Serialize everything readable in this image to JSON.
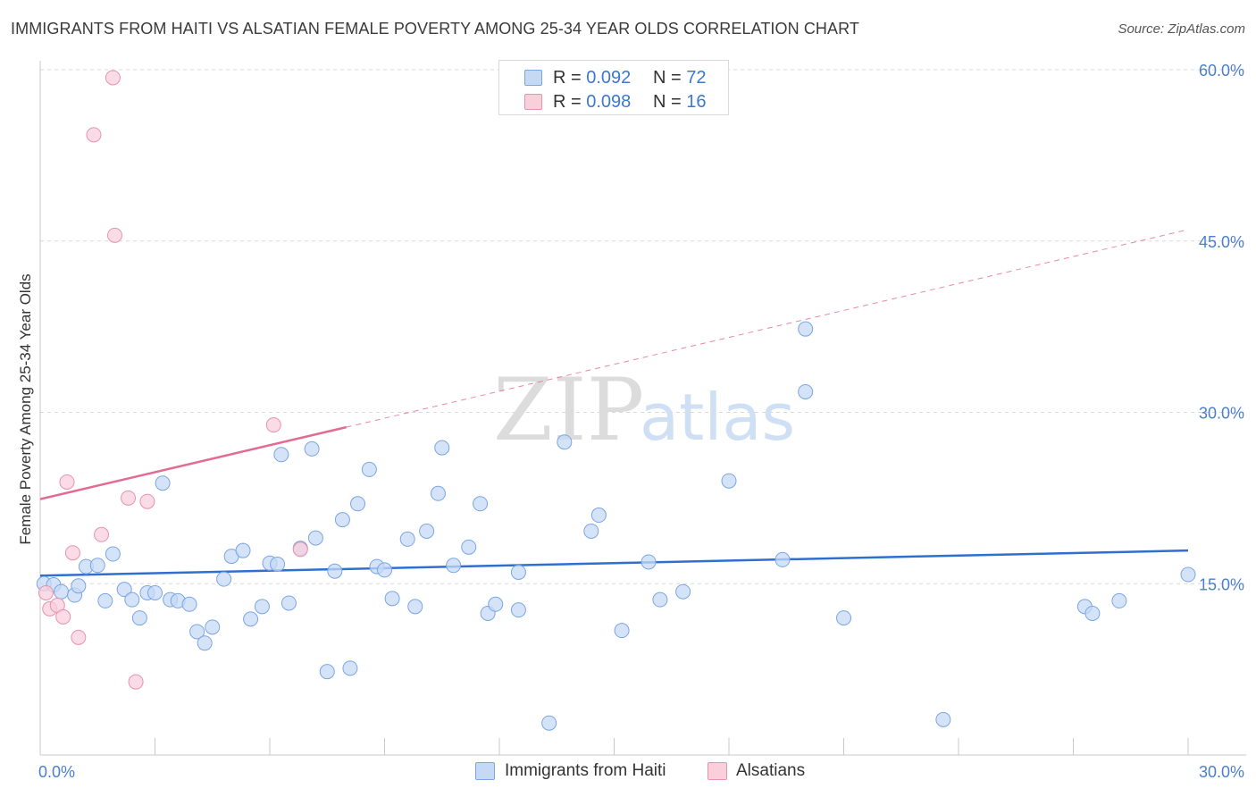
{
  "title": "IMMIGRANTS FROM HAITI VS ALSATIAN FEMALE POVERTY AMONG 25-34 YEAR OLDS CORRELATION CHART",
  "source": "Source: ZipAtlas.com",
  "watermark": {
    "part1": "ZIP",
    "part2": "atlas"
  },
  "colors": {
    "blue_fill": "#c5d9f5",
    "blue_stroke": "#7aa6e3",
    "blue_line": "#2e6fd0",
    "pink_fill": "#f9cfdc",
    "pink_stroke": "#e892ae",
    "pink_line": "#e26b95",
    "grid": "#d8d8d8",
    "axis_text": "#4a7fd0"
  },
  "legend_top": [
    {
      "r_label": "R = ",
      "r_value": "0.092",
      "n_label": "N = ",
      "n_value": "72"
    },
    {
      "r_label": "R = ",
      "r_value": "0.098",
      "n_label": "N = ",
      "n_value": "16"
    }
  ],
  "legend_bottom": [
    "Immigrants from Haiti",
    "Alsatians"
  ],
  "chart_data": {
    "type": "scatter",
    "xlabel": "",
    "ylabel": "Female Poverty Among 25-34 Year Olds",
    "xlim": [
      0,
      30
    ],
    "ylim": [
      0,
      60
    ],
    "x_tick_labels": [
      "0.0%",
      "30.0%"
    ],
    "y_ticks": [
      15,
      30,
      45,
      60
    ],
    "y_tick_labels": [
      "15.0%",
      "30.0%",
      "45.0%",
      "60.0%"
    ],
    "grid": true,
    "legend_position": "top-center",
    "series": [
      {
        "name": "Immigrants from Haiti",
        "color": "blue",
        "points": [
          [
            0.1,
            15.0
          ],
          [
            0.35,
            14.9
          ],
          [
            0.55,
            14.3
          ],
          [
            0.9,
            14.0
          ],
          [
            1.0,
            14.8
          ],
          [
            1.2,
            16.5
          ],
          [
            1.5,
            16.6
          ],
          [
            1.7,
            13.5
          ],
          [
            1.9,
            17.6
          ],
          [
            2.2,
            14.5
          ],
          [
            2.4,
            13.6
          ],
          [
            2.6,
            12.0
          ],
          [
            2.8,
            14.2
          ],
          [
            3.0,
            14.2
          ],
          [
            3.2,
            23.8
          ],
          [
            3.4,
            13.6
          ],
          [
            3.6,
            13.5
          ],
          [
            3.9,
            13.2
          ],
          [
            4.1,
            10.8
          ],
          [
            4.3,
            9.8
          ],
          [
            4.5,
            11.2
          ],
          [
            4.8,
            15.4
          ],
          [
            5.0,
            17.4
          ],
          [
            5.3,
            17.9
          ],
          [
            5.5,
            11.9
          ],
          [
            5.8,
            13.0
          ],
          [
            6.0,
            16.8
          ],
          [
            6.2,
            16.7
          ],
          [
            6.3,
            26.3
          ],
          [
            6.5,
            13.3
          ],
          [
            6.8,
            18.1
          ],
          [
            7.1,
            26.8
          ],
          [
            7.2,
            19.0
          ],
          [
            7.5,
            7.3
          ],
          [
            7.7,
            16.1
          ],
          [
            7.9,
            20.6
          ],
          [
            8.1,
            7.6
          ],
          [
            8.3,
            22.0
          ],
          [
            8.6,
            25.0
          ],
          [
            8.8,
            16.5
          ],
          [
            9.0,
            16.2
          ],
          [
            9.2,
            13.7
          ],
          [
            9.6,
            18.9
          ],
          [
            9.8,
            13.0
          ],
          [
            10.1,
            19.6
          ],
          [
            10.4,
            22.9
          ],
          [
            10.5,
            26.9
          ],
          [
            10.8,
            16.6
          ],
          [
            11.2,
            18.2
          ],
          [
            11.5,
            22.0
          ],
          [
            11.7,
            12.4
          ],
          [
            11.9,
            13.2
          ],
          [
            12.5,
            12.7
          ],
          [
            12.5,
            16.0
          ],
          [
            13.3,
            2.8
          ],
          [
            13.7,
            27.4
          ],
          [
            14.4,
            19.6
          ],
          [
            14.6,
            21.0
          ],
          [
            15.2,
            10.9
          ],
          [
            15.9,
            16.9
          ],
          [
            16.2,
            13.6
          ],
          [
            16.8,
            14.3
          ],
          [
            18.0,
            24.0
          ],
          [
            19.4,
            17.1
          ],
          [
            20.0,
            37.3
          ],
          [
            20.0,
            31.8
          ],
          [
            21.0,
            12.0
          ],
          [
            23.6,
            3.1
          ],
          [
            27.3,
            13.0
          ],
          [
            27.5,
            12.4
          ],
          [
            28.2,
            13.5
          ],
          [
            30.0,
            15.8
          ]
        ],
        "trend": {
          "x": [
            0,
            30
          ],
          "y": [
            15.7,
            17.9
          ]
        }
      },
      {
        "name": "Alsatians",
        "color": "pink",
        "points": [
          [
            0.15,
            14.2
          ],
          [
            0.25,
            12.8
          ],
          [
            0.45,
            13.1
          ],
          [
            0.6,
            12.1
          ],
          [
            0.7,
            23.9
          ],
          [
            0.85,
            17.7
          ],
          [
            1.0,
            10.3
          ],
          [
            1.4,
            54.3
          ],
          [
            1.6,
            19.3
          ],
          [
            1.9,
            59.3
          ],
          [
            1.95,
            45.5
          ],
          [
            2.3,
            22.5
          ],
          [
            2.5,
            6.4
          ],
          [
            2.8,
            22.2
          ],
          [
            6.1,
            28.9
          ],
          [
            6.8,
            18.0
          ]
        ],
        "trend": {
          "x": [
            0,
            8
          ],
          "y": [
            22.4,
            28.7
          ]
        },
        "trend_extension": {
          "x": [
            8,
            30
          ],
          "y": [
            28.7,
            46.0
          ]
        }
      }
    ]
  }
}
